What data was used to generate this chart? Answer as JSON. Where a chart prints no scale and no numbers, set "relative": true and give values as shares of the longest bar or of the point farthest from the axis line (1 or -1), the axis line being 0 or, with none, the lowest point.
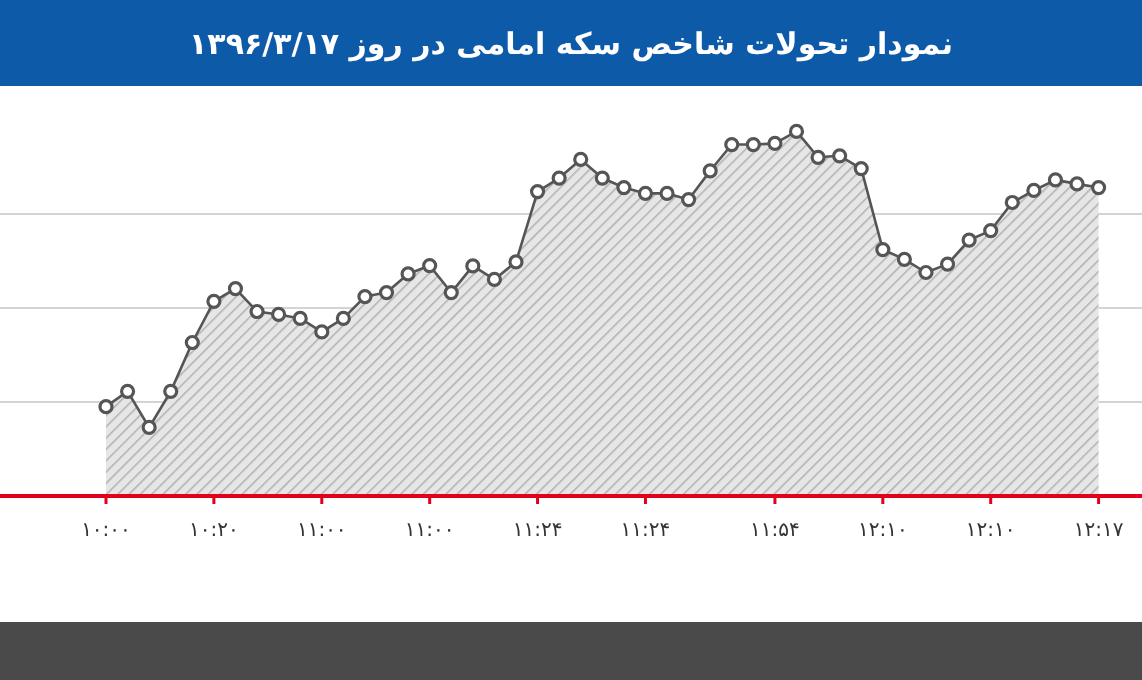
{
  "chart_data": {
    "type": "area",
    "title": "نمودار تحولات شاخص سکه امامی در روز ۱۳۹۶/۳/۱۷",
    "relative": true,
    "grid": "y",
    "marker": "circle",
    "line_style": "solid",
    "categories": [
      "۱۰:۰۰",
      null,
      null,
      null,
      null,
      "۱۰:۲۰",
      null,
      null,
      null,
      null,
      "۱۱:۰۰",
      null,
      null,
      null,
      null,
      "۱۱:۰۰",
      null,
      null,
      null,
      null,
      "۱۱:۲۴",
      null,
      null,
      null,
      null,
      "۱۱:۲۴",
      null,
      null,
      null,
      null,
      null,
      "۱۱:۵۴",
      null,
      null,
      null,
      null,
      "۱۲:۱۰",
      null,
      null,
      null,
      null,
      "۱۲:۱۰",
      null,
      null,
      null,
      null,
      "۱۲:۱۷"
    ],
    "series": [
      {
        "color": "#555555",
        "values": [
          0.245,
          0.287,
          0.188,
          0.287,
          0.421,
          0.534,
          0.569,
          0.506,
          0.498,
          0.487,
          0.45,
          0.487,
          0.547,
          0.558,
          0.609,
          0.632,
          0.558,
          0.631,
          0.594,
          0.642,
          0.835,
          0.872,
          0.923,
          0.872,
          0.846,
          0.83,
          0.83,
          0.813,
          0.892,
          0.964,
          0.964,
          0.967,
          1,
          0.929,
          0.933,
          0.898,
          0.676,
          0.649,
          0.613,
          0.636,
          0.702,
          0.728,
          0.805,
          0.838,
          0.867,
          0.856,
          0.846
        ]
      }
    ]
  }
}
